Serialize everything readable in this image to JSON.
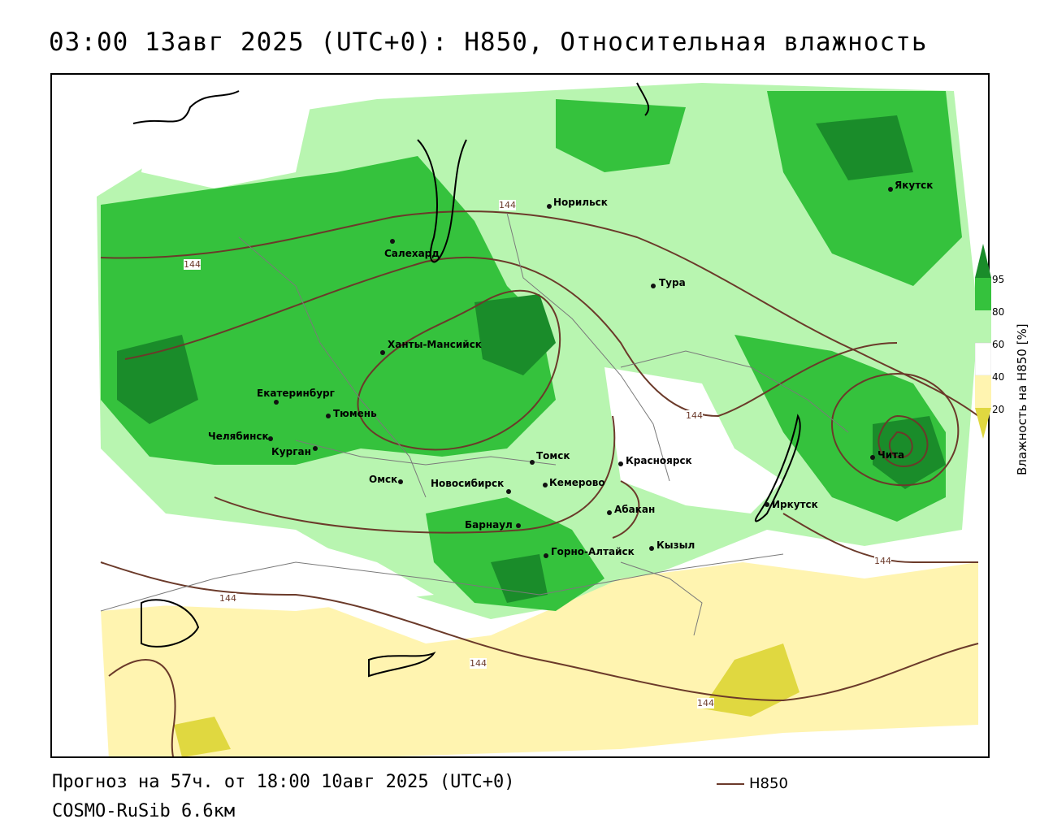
{
  "title": "03:00 13авг 2025 (UTC+0): H850, Относительная влажность",
  "footer": {
    "forecast": "Прогноз на 57ч. от 18:00 10авг 2025 (UTC+0)",
    "model": "COSMO-RuSib 6.6км"
  },
  "legend": {
    "contour_label": "H850",
    "colorbar_title": "Влажность на H850 [%]",
    "ticks": [
      "95",
      "80",
      "60",
      "40",
      "20"
    ],
    "colors": {
      "c95": "#1a8c2a",
      "c80": "#35c23d",
      "c60": "#b8f5b0",
      "c40": "#ffffff",
      "c20": "#fff4b0",
      "clow": "#e0d840",
      "contour": "#6b3a2a"
    }
  },
  "contour_value_label": "144",
  "cities": [
    {
      "name": "Норильск"
    },
    {
      "name": "Якутск"
    },
    {
      "name": "Салехард"
    },
    {
      "name": "Тура"
    },
    {
      "name": "Ханты-Мансийск"
    },
    {
      "name": "Екатеринбург"
    },
    {
      "name": "Тюмень"
    },
    {
      "name": "Челябинск"
    },
    {
      "name": "Курган"
    },
    {
      "name": "Омск"
    },
    {
      "name": "Томск"
    },
    {
      "name": "Новосибирск"
    },
    {
      "name": "Кемерово"
    },
    {
      "name": "Красноярск"
    },
    {
      "name": "Абакан"
    },
    {
      "name": "Барнаул"
    },
    {
      "name": "Горно-Алтайск"
    },
    {
      "name": "Кызыл"
    },
    {
      "name": "Иркутск"
    },
    {
      "name": "Чита"
    }
  ]
}
